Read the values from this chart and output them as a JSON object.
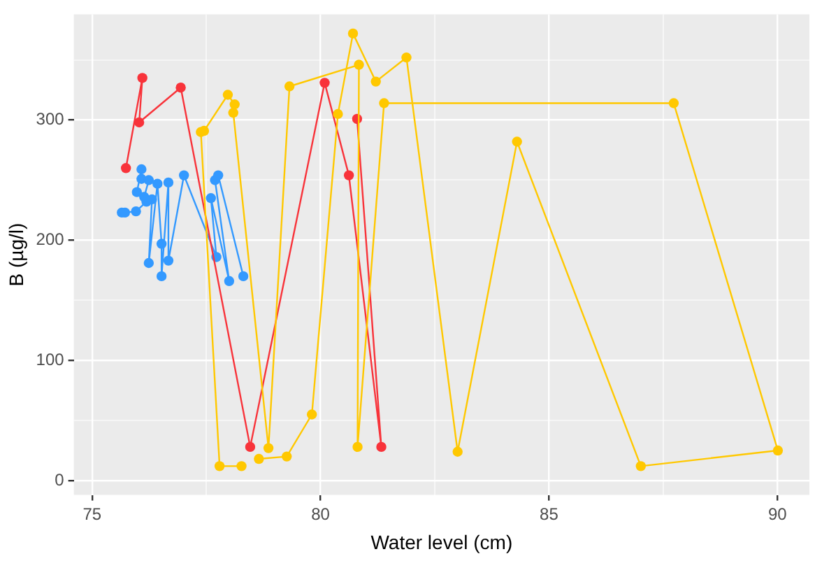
{
  "chart_data": {
    "type": "line",
    "xlabel": "Water level (cm)",
    "ylabel": "B (µg/l)",
    "marker": "circle",
    "grid": true,
    "legend": false,
    "xlim": [
      74.6,
      90.7
    ],
    "ylim": [
      -12,
      388
    ],
    "xticks": [
      75,
      {
        "value": 77.5,
        "label": null
      },
      80,
      {
        "value": 82.5,
        "label": null
      },
      85,
      {
        "value": 87.5,
        "label": null
      },
      90
    ],
    "yticks": [
      0,
      {
        "value": 50,
        "label": null
      },
      100,
      {
        "value": 150,
        "label": null
      },
      200,
      {
        "value": 250,
        "label": null
      },
      300,
      {
        "value": 350,
        "label": null
      }
    ],
    "series": [
      {
        "color": "#ffc800",
        "x": [
          78.27,
          77.79,
          77.38,
          77.45,
          77.97,
          78.12,
          78.09,
          78.86,
          79.32,
          80.84,
          80.81,
          81.39,
          87.73,
          90.01,
          87.01,
          84.3,
          83.0,
          81.88,
          81.21,
          80.71,
          80.38,
          79.81,
          79.26,
          78.65
        ],
        "values": [
          12,
          12,
          290,
          291,
          321,
          313,
          306,
          27,
          328,
          346,
          28,
          314,
          314,
          25,
          12,
          282,
          24,
          352,
          332,
          372,
          305,
          55,
          20,
          18
        ]
      },
      {
        "color": "#f8333a",
        "x": [
          75.74,
          76.1,
          76.03,
          76.94,
          78.46,
          80.09,
          80.62,
          81.33,
          80.8
        ],
        "values": [
          260,
          335,
          298,
          327,
          28,
          331,
          254,
          28,
          301
        ]
      },
      {
        "color": "#3399ff",
        "x": [
          75.65,
          75.72,
          75.96,
          76.19,
          75.98,
          76.08,
          76.08,
          76.24,
          76.14,
          76.31,
          76.24,
          76.43,
          76.52,
          76.52,
          76.67,
          76.67,
          77.01,
          77.72,
          77.6,
          78.0,
          77.69,
          77.76,
          78.31
        ],
        "values": [
          223,
          223,
          224,
          232,
          240,
          259,
          251,
          250,
          236,
          234,
          181,
          247,
          197,
          170,
          248,
          183,
          254,
          186,
          235,
          166,
          250,
          254,
          170
        ]
      }
    ]
  }
}
